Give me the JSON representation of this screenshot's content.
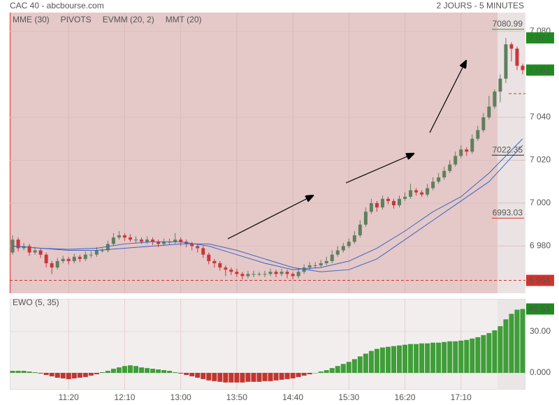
{
  "title": "CAC 40 - abcbourse.com",
  "subtitle": "2 JOURS - 5 MINUTES",
  "chart_data": [
    {
      "type": "candlestick",
      "xlim": [
        -0.5,
        91.5
      ],
      "ylim": [
        6958,
        7088.8
      ],
      "xticks": [
        {
          "value": 10,
          "label": "11:20"
        },
        {
          "value": 20,
          "label": "12:10"
        },
        {
          "value": 30,
          "label": "13:00"
        },
        {
          "value": 40,
          "label": "13:50"
        },
        {
          "value": 50,
          "label": "14:40"
        },
        {
          "value": 60,
          "label": "15:30"
        },
        {
          "value": 70,
          "label": "16:20"
        },
        {
          "value": 80,
          "label": "17:10"
        }
      ],
      "yticks": [
        {
          "value": 6980,
          "label": "6 980"
        },
        {
          "value": 7000,
          "label": "7 000"
        },
        {
          "value": 7020,
          "label": "7 020"
        },
        {
          "value": 7040,
          "label": "7 040"
        },
        {
          "value": 7080,
          "label": "7 080"
        }
      ],
      "up_color": "#5f7f5f",
      "down_color": "#c8373b",
      "open": [
        6977,
        6983,
        6979,
        6980,
        6977,
        6978,
        6976,
        6972,
        6970,
        6973,
        6974,
        6973,
        6975,
        6974,
        6976,
        6976,
        6978,
        6978,
        6981,
        6984,
        6985,
        6984,
        6983,
        6983,
        6982,
        6983,
        6982,
        6981,
        6982,
        6982,
        6983,
        6982,
        6981,
        6980,
        6979,
        6976,
        6973,
        6972,
        6970,
        6969,
        6968,
        6967,
        6966,
        6967,
        6967,
        6967,
        6967,
        6968,
        6967,
        6968,
        6967,
        6966,
        6968,
        6970,
        6971,
        6971,
        6972,
        6973,
        6976,
        6978,
        6980,
        6982,
        6985,
        6990,
        6996,
        7000,
        6998,
        7002,
        7001,
        6999,
        7002,
        7003,
        7006,
        7005,
        7004,
        7007,
        7010,
        7012,
        7015,
        7018,
        7022,
        7025,
        7024,
        7030,
        7034,
        7040,
        7045,
        7052,
        7058,
        7074,
        7072,
        7064
      ],
      "high": [
        6985,
        6984,
        6981.5,
        6981,
        6979.5,
        6979,
        6977,
        6973,
        6974.5,
        6975.5,
        6975,
        6976.5,
        6976,
        6977.5,
        6977.5,
        6979.5,
        6979,
        6982.5,
        6986,
        6987,
        6986,
        6985.5,
        6984.5,
        6984,
        6984.5,
        6984,
        6983,
        6983.5,
        6983.5,
        6986,
        6984,
        6983,
        6982,
        6981,
        6980,
        6977,
        6974,
        6973,
        6971,
        6970,
        6969.5,
        6968,
        6968.5,
        6968.5,
        6968,
        6968.5,
        6969.5,
        6969,
        6969.5,
        6969,
        6968,
        6969.5,
        6971.5,
        6972.5,
        6972.5,
        6973.5,
        6975,
        6978,
        6980,
        6981.5,
        6983.5,
        6987,
        6992,
        6998,
        7002,
        7001,
        7003.5,
        7003,
        7002,
        7003.5,
        7005,
        7009,
        7007,
        7006,
        7009,
        7012,
        7014,
        7017,
        7020,
        7024,
        7027,
        7026,
        7032,
        7036,
        7042,
        7050,
        7053,
        7060,
        7077,
        7075,
        7073,
        7065
      ],
      "low": [
        6976,
        6977.5,
        6978,
        6975.5,
        6976,
        6974.5,
        6970,
        6967,
        6969,
        6972,
        6971.5,
        6972,
        6972.5,
        6973,
        6974.5,
        6975,
        6977,
        6977,
        6980,
        6983,
        6982.5,
        6982,
        6981.5,
        6981,
        6981,
        6980.5,
        6979.5,
        6980,
        6980.5,
        6981,
        6980,
        6979.5,
        6978,
        6977,
        6974.5,
        6971.5,
        6970,
        6968.5,
        6966,
        6966.5,
        6965.5,
        6964.5,
        6965,
        6965.5,
        6966,
        6965.5,
        6966,
        6965.5,
        6966,
        6965,
        6964.5,
        6965,
        6967,
        6969,
        6969.5,
        6970,
        6971,
        6972,
        6975,
        6977,
        6979,
        6981,
        6984,
        6989,
        6995,
        6996,
        6997,
        6999.5,
        6997.5,
        6998,
        7001,
        7002,
        7003.5,
        7003,
        7003,
        7006,
        7009,
        7011,
        7014,
        7017,
        7021,
        7022,
        7023,
        7029,
        7033,
        7039,
        7044,
        7047,
        7056,
        7066,
        7062,
        7060
      ],
      "close": [
        6983,
        6979,
        6980,
        6977,
        6978,
        6976,
        6972,
        6970,
        6973,
        6974,
        6973,
        6975,
        6974,
        6976,
        6976,
        6978,
        6978,
        6981,
        6984,
        6985,
        6984,
        6983,
        6983,
        6982,
        6983,
        6982,
        6981,
        6982,
        6982,
        6983,
        6982,
        6981,
        6980,
        6979,
        6976,
        6973,
        6972,
        6970,
        6969,
        6968,
        6967,
        6966,
        6967,
        6967,
        6967,
        6967,
        6968,
        6967,
        6968,
        6967,
        6966,
        6968,
        6970,
        6971,
        6971,
        6972,
        6973,
        6976,
        6978,
        6980,
        6982,
        6985,
        6990,
        6996,
        7000,
        6998,
        7002,
        7001,
        6999,
        7002,
        7003,
        7006,
        7005,
        7004,
        7007,
        7010,
        7012,
        7015,
        7018,
        7022,
        7025,
        7024,
        7030,
        7034,
        7040,
        7045,
        7052,
        7058,
        7074,
        7072,
        7064,
        7062
      ],
      "series": [
        {
          "name": "MME (30)",
          "color": "#3a66c4",
          "x": [
            0,
            5,
            10,
            15,
            20,
            25,
            30,
            35,
            40,
            45,
            50,
            55,
            60,
            65,
            70,
            75,
            80,
            85,
            91
          ],
          "values": [
            6980,
            6979,
            6978,
            6978,
            6979,
            6980,
            6981,
            6981,
            6978,
            6974,
            6970,
            6968,
            6969,
            6974,
            6983,
            6992,
            7001,
            7010,
            7027
          ]
        },
        {
          "name": "PIVOTS",
          "color": "#444444",
          "values": [
            7080.99,
            7022.35,
            6993.03
          ],
          "value_labels": [
            "7080.99",
            "7022.35",
            "6993.03"
          ],
          "colors": [
            "#3b8a2e",
            "#222222",
            "#d0342c"
          ]
        },
        {
          "name": "EVMM (20, 2)",
          "color": "#d0342c"
        },
        {
          "name": "MMT (20)",
          "color": "#3a66c4",
          "x": [
            0,
            5,
            10,
            15,
            20,
            25,
            30,
            35,
            40,
            45,
            50,
            55,
            60,
            65,
            70,
            75,
            80,
            85,
            91
          ],
          "values": [
            6980,
            6979,
            6978.5,
            6979,
            6981,
            6982,
            6982,
            6980,
            6976,
            6972,
            6969,
            6970,
            6973,
            6979,
            6987,
            6996,
            7003,
            7014,
            7030
          ]
        }
      ],
      "dashed_lines": [
        6964,
        7051
      ],
      "dashed_color": "#d0342c",
      "price_tags": [
        {
          "value": 7077,
          "label": "7 077",
          "color": "#1f8a1f"
        },
        {
          "value": 7062,
          "label": "7 062",
          "color": "#1f8a1f"
        },
        {
          "value": 6964,
          "label": "6 964",
          "color": "#d0342c"
        }
      ]
    },
    {
      "type": "bar",
      "name": "EWO (5, 35)",
      "name_color": "#2f8a2f",
      "xlim": [
        -0.5,
        91.5
      ],
      "ylim": [
        -12.2,
        53.9
      ],
      "yticks": [
        {
          "value": 30,
          "label": "30.00"
        },
        {
          "value": 0,
          "label": "0.000"
        }
      ],
      "up_color": "#3f9e38",
      "down_color": "#c2352f",
      "values": [
        1.5,
        1.5,
        1.5,
        1,
        0.5,
        -0.5,
        -1.5,
        -2.5,
        -3.5,
        -4,
        -4.5,
        -4,
        -3.5,
        -3,
        -2,
        -1,
        0.5,
        1.5,
        3,
        4,
        5,
        5.5,
        5,
        4,
        3.5,
        3,
        2.5,
        2,
        1.5,
        0.5,
        -0.5,
        -1.5,
        -2.5,
        -3.5,
        -4.5,
        -5.5,
        -6,
        -6.5,
        -7,
        -7,
        -7,
        -7,
        -6.5,
        -6.5,
        -6.5,
        -6,
        -6,
        -5.5,
        -5,
        -4.5,
        -4,
        -3,
        -2,
        -1,
        0,
        1,
        2,
        3.5,
        5,
        6.5,
        8,
        10,
        12,
        14,
        16,
        17.5,
        18.5,
        19,
        19.5,
        20,
        20.5,
        21,
        21,
        21.5,
        21.5,
        22,
        22,
        22.5,
        23,
        23,
        23.5,
        24,
        25,
        26,
        27.5,
        29,
        31,
        34,
        39,
        43,
        46,
        46.53
      ],
      "price_tags": [
        {
          "value": 46.53,
          "label": "46.53",
          "color": "#1f8a1f"
        }
      ]
    }
  ]
}
